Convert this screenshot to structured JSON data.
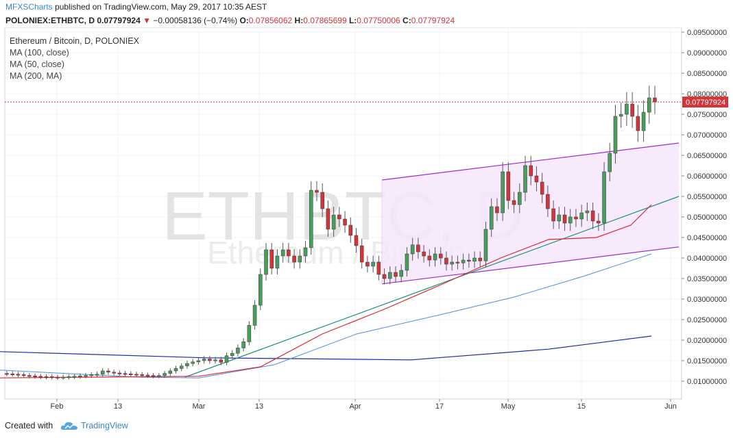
{
  "header": {
    "author": "MFXSCharts",
    "published": "published on TradingView.com, May 29, 2017 10:35 AEST"
  },
  "ohlc_bar": {
    "symbol": "POLONIEX:ETHBTC, D",
    "last": "0.07797924",
    "change": "−0.00058136 (−0.74%)",
    "open_label": "O:",
    "open": "0.07856062",
    "high_label": "H:",
    "high": "0.07865699",
    "low_label": "L:",
    "low": "0.07750006",
    "close_label": "C:",
    "close": "0.07797924"
  },
  "legend": {
    "title": "Ethereum / Bitcoin, D, POLONIEX",
    "ma100": "MA (100, close)",
    "ma50": "MA (50, close)",
    "ma200": "MA (200, MA)"
  },
  "watermark": {
    "big": "ETHBTC, D",
    "small": "Ethereum / Bitcoin"
  },
  "footer": {
    "created": "Created with",
    "brand": "TradingView"
  },
  "colors": {
    "up": "#4a9e5c",
    "down": "#d3343a",
    "ma100": "#4a90e2",
    "ma50": "#e0262b",
    "ma200": "#1c2aa8",
    "channel": "#9c27d4",
    "trend": "#1e8f7f",
    "price_line": "#d3343a"
  },
  "chart_data": {
    "type": "candlestick",
    "x_tick_labels": [
      "Feb",
      "13",
      "Mar",
      "13",
      "Apr",
      "17",
      "May",
      "15",
      "Jun"
    ],
    "y_tick_labels": [
      "0.09500000",
      "0.09000000",
      "0.08500000",
      "0.08000000",
      "0.07500000",
      "0.07000000",
      "0.06500000",
      "0.06000000",
      "0.05500000",
      "0.05000000",
      "0.04500000",
      "0.04000000",
      "0.03500000",
      "0.03000000",
      "0.02500000",
      "0.02000000",
      "0.01500000",
      "0.01000000"
    ],
    "ylim": [
      0.0058,
      0.0962
    ],
    "current_price_label": "0.07797924",
    "current_price": 0.07797924,
    "closes": [
      0.0118,
      0.0117,
      0.0116,
      0.0115,
      0.0113,
      0.0112,
      0.0111,
      0.011,
      0.011,
      0.0109,
      0.011,
      0.0111,
      0.0112,
      0.0113,
      0.0114,
      0.0116,
      0.0117,
      0.0125,
      0.0122,
      0.012,
      0.0119,
      0.0118,
      0.0117,
      0.0116,
      0.0115,
      0.0114,
      0.0113,
      0.0114,
      0.0119,
      0.0125,
      0.0131,
      0.0137,
      0.0143,
      0.0147,
      0.015,
      0.0154,
      0.015,
      0.0152,
      0.0146,
      0.0162,
      0.0168,
      0.0181,
      0.0196,
      0.0236,
      0.0285,
      0.036,
      0.042,
      0.0375,
      0.0405,
      0.042,
      0.0405,
      0.039,
      0.0405,
      0.0425,
      0.0565,
      0.056,
      0.052,
      0.047,
      0.0505,
      0.0495,
      0.048,
      0.0455,
      0.043,
      0.039,
      0.038,
      0.039,
      0.036,
      0.035,
      0.0365,
      0.0355,
      0.037,
      0.041,
      0.0432,
      0.0415,
      0.0405,
      0.0395,
      0.041,
      0.04,
      0.0385,
      0.039,
      0.0388,
      0.0395,
      0.0392,
      0.04,
      0.0393,
      0.047,
      0.0525,
      0.051,
      0.061,
      0.054,
      0.053,
      0.056,
      0.0625,
      0.06,
      0.0585,
      0.0555,
      0.052,
      0.049,
      0.0505,
      0.0485,
      0.05,
      0.0495,
      0.051,
      0.0515,
      0.049,
      0.0485,
      0.061,
      0.0655,
      0.0745,
      0.075,
      0.0775,
      0.0745,
      0.071,
      0.0755,
      0.079,
      0.078
    ],
    "opens": [
      0.0119,
      0.0118,
      0.0117,
      0.0116,
      0.0114,
      0.0113,
      0.0112,
      0.0111,
      0.0111,
      0.011,
      0.0109,
      0.011,
      0.0111,
      0.0112,
      0.0113,
      0.0114,
      0.0116,
      0.0117,
      0.0125,
      0.0122,
      0.012,
      0.0119,
      0.0118,
      0.0117,
      0.0116,
      0.0115,
      0.0114,
      0.0113,
      0.0114,
      0.0119,
      0.0125,
      0.0131,
      0.0137,
      0.0143,
      0.0147,
      0.015,
      0.0154,
      0.015,
      0.0152,
      0.0146,
      0.0162,
      0.0168,
      0.0181,
      0.0196,
      0.0236,
      0.0285,
      0.036,
      0.042,
      0.0375,
      0.0405,
      0.042,
      0.0405,
      0.039,
      0.0405,
      0.0425,
      0.0565,
      0.056,
      0.052,
      0.047,
      0.0505,
      0.0495,
      0.048,
      0.0455,
      0.043,
      0.039,
      0.038,
      0.039,
      0.036,
      0.035,
      0.0365,
      0.0355,
      0.037,
      0.041,
      0.0432,
      0.0415,
      0.0405,
      0.0395,
      0.041,
      0.04,
      0.0385,
      0.039,
      0.0388,
      0.0395,
      0.0392,
      0.04,
      0.0393,
      0.047,
      0.0525,
      0.051,
      0.061,
      0.054,
      0.053,
      0.056,
      0.0625,
      0.06,
      0.0585,
      0.0555,
      0.052,
      0.049,
      0.0505,
      0.0485,
      0.05,
      0.0495,
      0.051,
      0.0515,
      0.049,
      0.0485,
      0.061,
      0.0655,
      0.0745,
      0.075,
      0.0775,
      0.0745,
      0.071,
      0.0755,
      0.079
    ],
    "ma100_values": [
      [
        0,
        0.0127
      ],
      [
        200,
        0.011
      ],
      [
        290,
        0.0108
      ],
      [
        400,
        0.014
      ],
      [
        520,
        0.0215
      ],
      [
        650,
        0.0265
      ],
      [
        750,
        0.0305
      ],
      [
        850,
        0.0355
      ],
      [
        950,
        0.041
      ]
    ],
    "ma50_values": [
      [
        0,
        0.0108
      ],
      [
        290,
        0.0112
      ],
      [
        380,
        0.0135
      ],
      [
        470,
        0.0215
      ],
      [
        560,
        0.0275
      ],
      [
        650,
        0.034
      ],
      [
        730,
        0.04
      ],
      [
        800,
        0.0445
      ],
      [
        870,
        0.045
      ],
      [
        920,
        0.048
      ],
      [
        950,
        0.053
      ]
    ],
    "ma200_values": [
      [
        0,
        0.0172
      ],
      [
        300,
        0.0157
      ],
      [
        600,
        0.0152
      ],
      [
        800,
        0.0178
      ],
      [
        950,
        0.021
      ]
    ],
    "trendline": [
      [
        270,
        0.011
      ],
      [
        990,
        0.055
      ]
    ],
    "channel_upper": [
      [
        557,
        0.059
      ],
      [
        990,
        0.068
      ]
    ],
    "channel_lower": [
      [
        557,
        0.0337
      ],
      [
        990,
        0.0427
      ]
    ]
  }
}
